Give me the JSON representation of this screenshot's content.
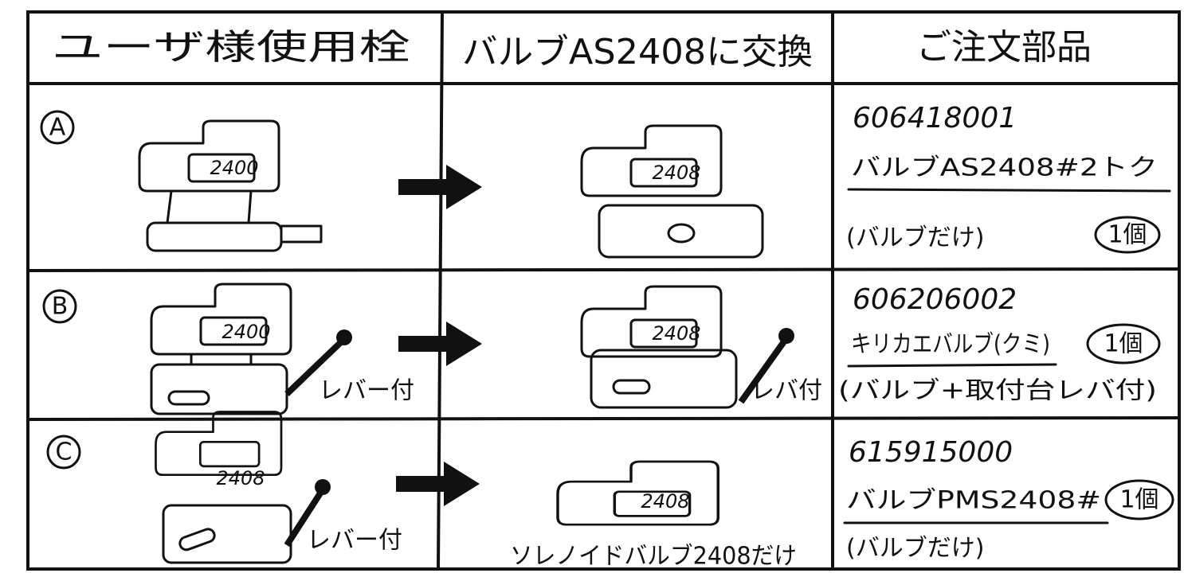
{
  "header": [
    "ユーザ様使用栓",
    "バルブAS2408に交換",
    "ご注文部品"
  ],
  "rows": [
    {
      "label": "A",
      "current_label": "2400",
      "new_label": "2408",
      "part_number": "606418001",
      "part_name": "バルブAS2408#2トク",
      "note": "(バルブだけ)",
      "quantity": "1個"
    },
    {
      "label": "B",
      "current_label": "2400",
      "current_lever": "レバー付",
      "new_label": "2408",
      "new_lever": "レバ付",
      "part_number": "606206002",
      "part_name": "キリカエバルブ(クミ)",
      "note": "(バルブ+取付台レバ付)",
      "quantity": "1個"
    },
    {
      "label": "C",
      "current_label": "2408",
      "current_lever": "レバー付",
      "new_label": "2408",
      "new_caption": "ソレノイドバルブ2408だけ",
      "part_number": "615915000",
      "part_name": "バルブPMS2408#",
      "note": "(バルブだけ)",
      "quantity": "1個"
    }
  ]
}
